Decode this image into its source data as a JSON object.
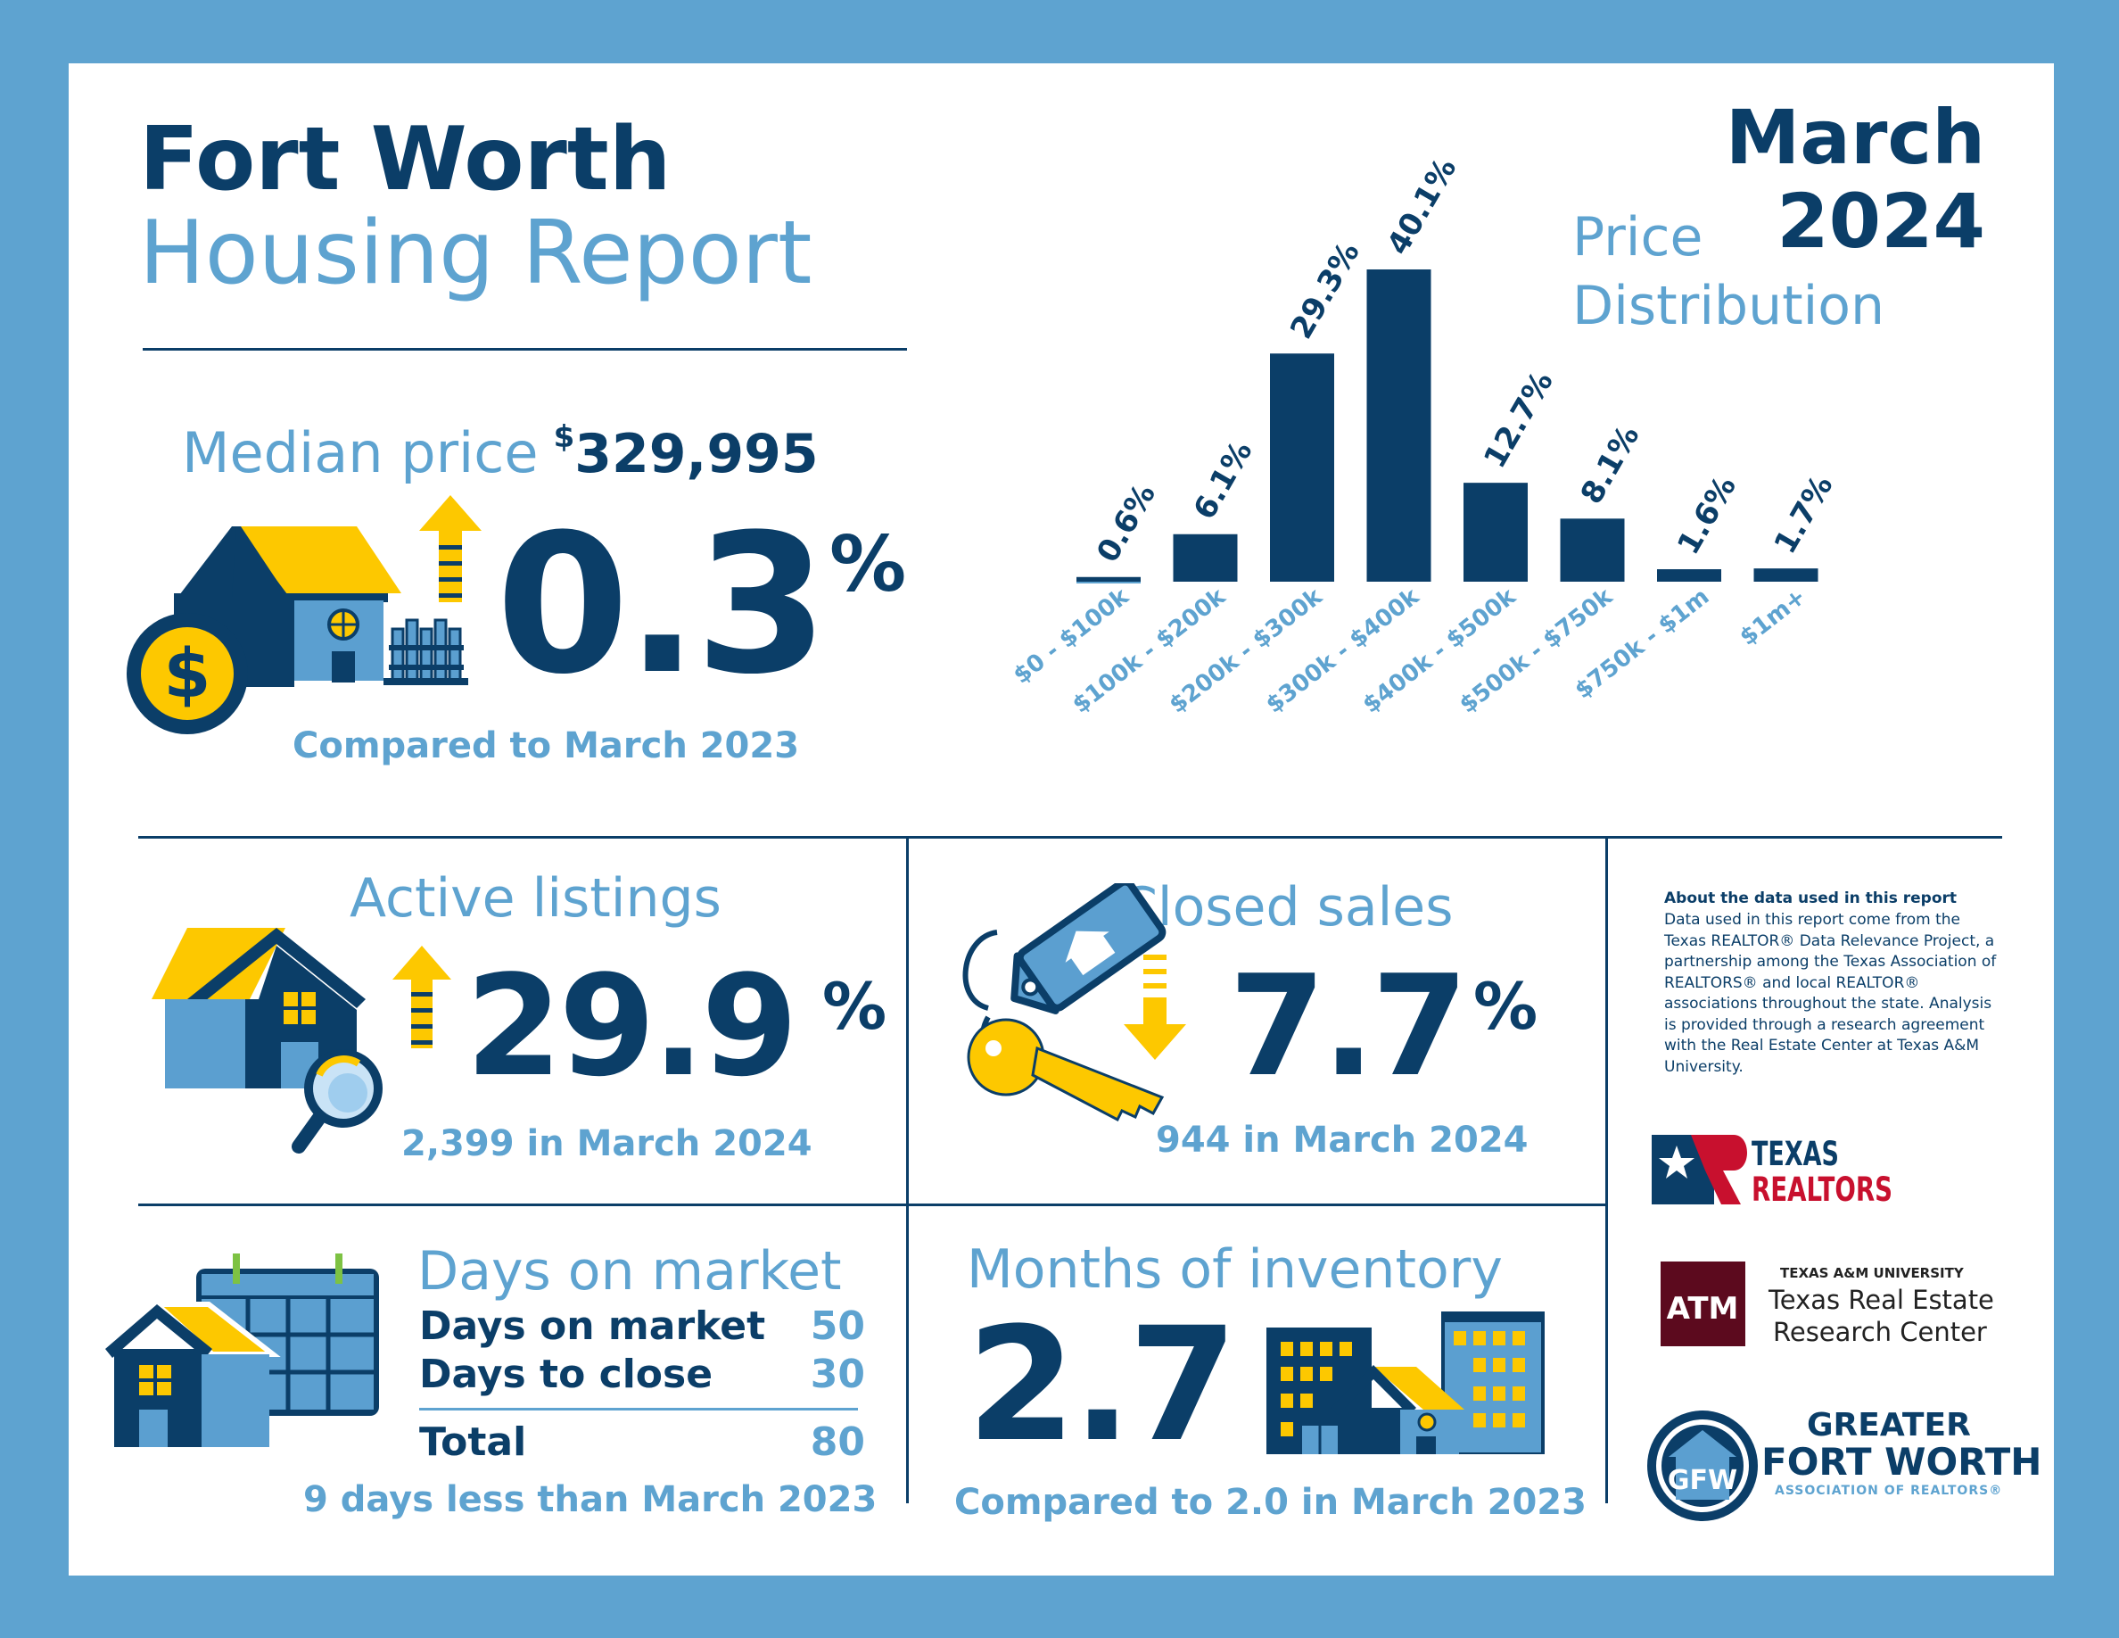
{
  "header": {
    "city": "Fort Worth",
    "title": "Housing Report",
    "month": "March",
    "year": "2024"
  },
  "median": {
    "label": "Median price",
    "currency": "$",
    "value": "329,995",
    "change": "0.3",
    "percent_sign": "%",
    "direction": "up",
    "comparison": "Compared to March 2023"
  },
  "price_distribution": {
    "title_line1": "Price",
    "title_line2": "Distribution"
  },
  "chart_data": {
    "type": "bar",
    "categories": [
      "$0 - $100k",
      "$100k - $200k",
      "$200k - $300k",
      "$300k - $400k",
      "$400k - $500k",
      "$500k - $750k",
      "$750k - $1m",
      "$1m+"
    ],
    "values": [
      0.6,
      6.1,
      29.3,
      40.1,
      12.7,
      8.1,
      1.6,
      1.7
    ],
    "data_labels": [
      "0.6%",
      "6.1%",
      "29.3%",
      "40.1%",
      "12.7%",
      "8.1%",
      "1.6%",
      "1.7%"
    ],
    "title": "Price Distribution",
    "xlabel": "",
    "ylabel": "",
    "ylim": [
      0,
      40.1
    ],
    "grid": false,
    "bar_color": "#0b3e68"
  },
  "active_listings": {
    "label": "Active listings",
    "change": "29.9",
    "percent_sign": "%",
    "direction": "up",
    "detail": "2,399 in March 2024"
  },
  "closed_sales": {
    "label": "Closed sales",
    "change": "7.7",
    "percent_sign": "%",
    "direction": "down",
    "detail": "944 in March 2024"
  },
  "days_on_market": {
    "label": "Days on market",
    "rows": [
      {
        "label": "Days on market",
        "value": "50"
      },
      {
        "label": "Days to close",
        "value": "30"
      }
    ],
    "total_label": "Total",
    "total_value": "80",
    "comparison": "9 days less than March 2023"
  },
  "inventory": {
    "label": "Months of inventory",
    "value": "2.7",
    "comparison": "Compared to 2.0 in March 2023"
  },
  "about": {
    "heading": "About the data used in this report",
    "body": "Data used in this report come from the Texas REALTOR® Data Relevance Project, a partnership among the Texas Association of REALTORS® and local REALTOR® associations throughout the state. Analysis is provided through a research agreement with the Real Estate Center at Texas A&M University."
  },
  "logos": {
    "texas_realtors_line1": "TEXAS",
    "texas_realtors_line2": "REALTORS",
    "tamu_small": "TEXAS A&M UNIVERSITY",
    "tamu_line1": "Texas Real Estate",
    "tamu_line2": "Research Center",
    "tamu_mark": "ATM",
    "gfw_line1": "GREATER",
    "gfw_line2": "FORT WORTH",
    "gfw_line3": "ASSOCIATION OF REALTORS®",
    "gfw_mark": "GFW"
  },
  "colors": {
    "navy": "#0b3e68",
    "light_blue": "#5ea3d0",
    "yellow": "#fdc800",
    "mid_blue": "#5b9fd0",
    "maroon": "#5c0a1e",
    "texas_red": "#c8102e"
  }
}
